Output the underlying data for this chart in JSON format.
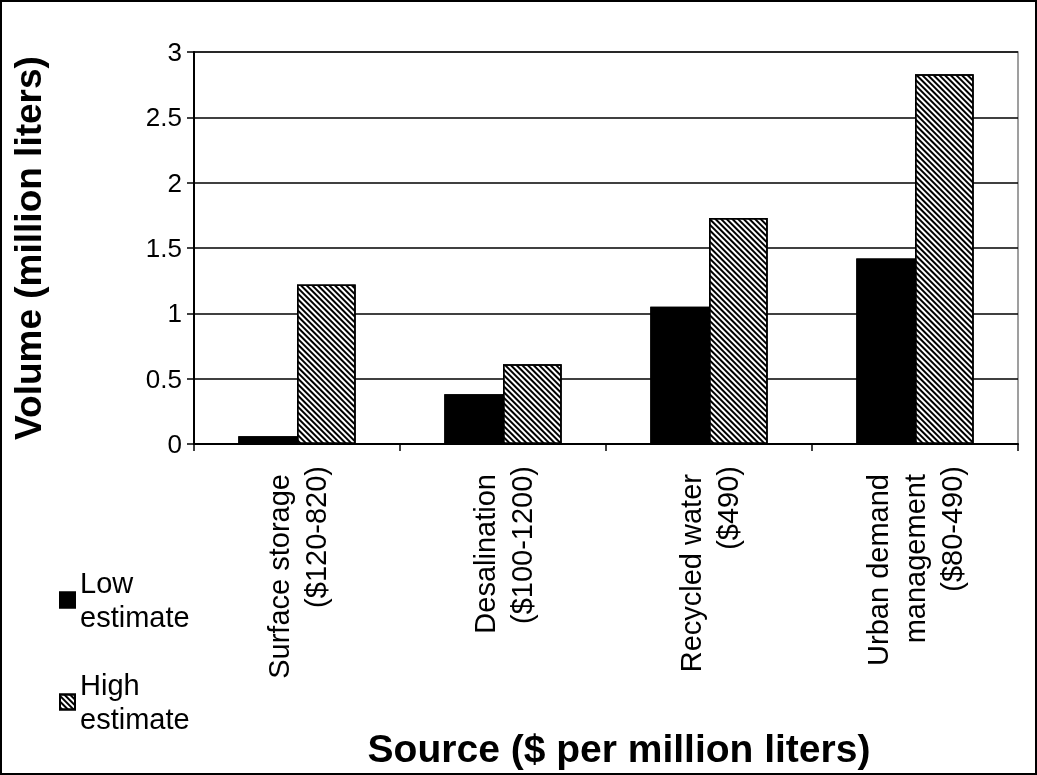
{
  "chart_data": {
    "type": "bar",
    "categories": [
      "Surface storage ($120-820)",
      "Desalination ($100-1200)",
      "Recycled water ($490)",
      "Urban demand management ($80-490)"
    ],
    "series": [
      {
        "name": "Low estimate",
        "color": "#000000",
        "values": [
          0.06,
          0.38,
          1.05,
          1.42
        ]
      },
      {
        "name": "High estimate",
        "color": "#ffffff",
        "values": [
          1.22,
          0.61,
          1.73,
          2.83
        ]
      }
    ],
    "xlabel": "Source ($ per million liters)",
    "ylabel": "Volume (million liters)",
    "ylim": [
      0,
      3
    ],
    "yticks": [
      0,
      0.5,
      1,
      1.5,
      2,
      2.5,
      3
    ],
    "grid": "y",
    "legend": "bottom left"
  }
}
